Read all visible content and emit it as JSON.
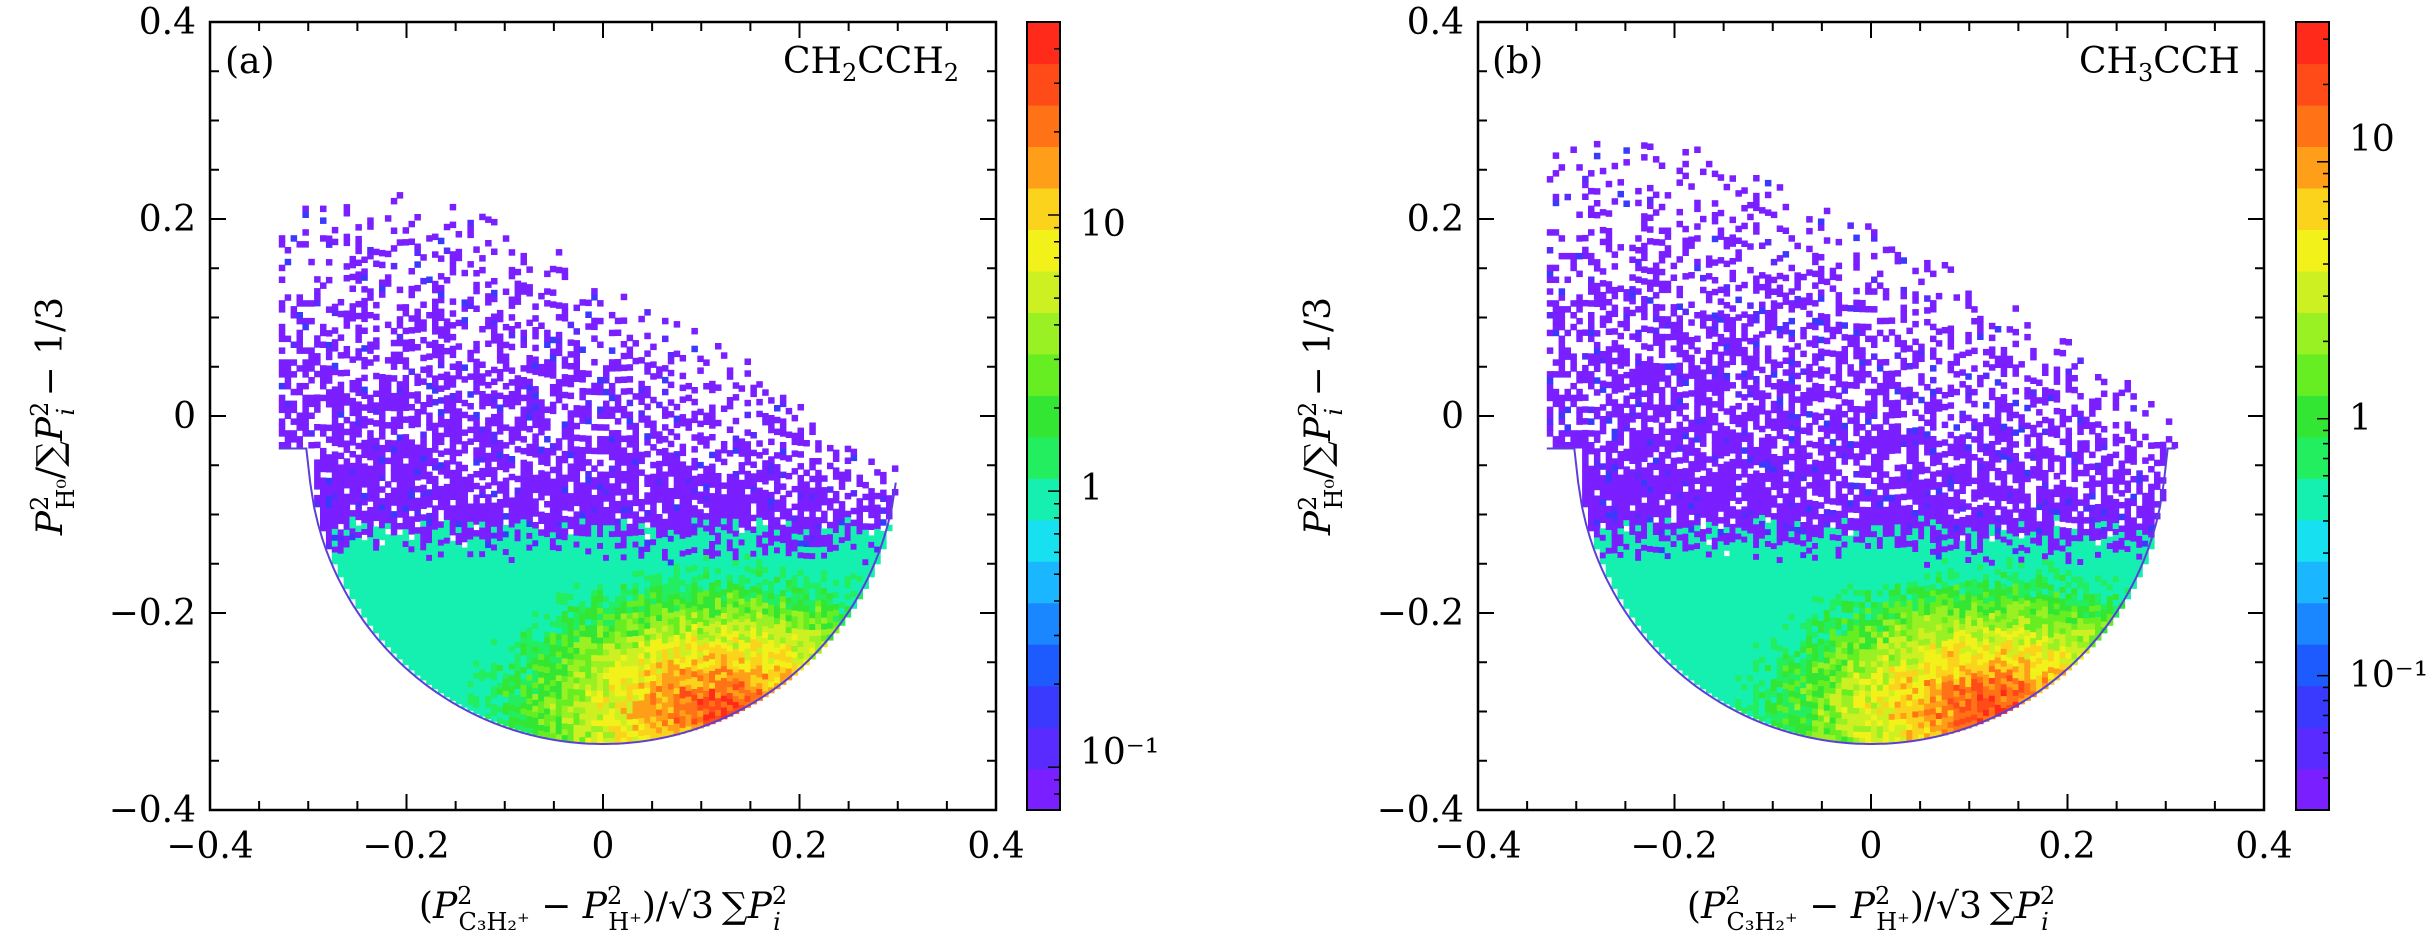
{
  "chart_data": [
    {
      "type": "heatmap",
      "panel_label": "(a)",
      "molecule": {
        "base": "CH",
        "sub1": "2",
        "mid": "CCH",
        "sub2": "2"
      },
      "xlabel": {
        "open": "(",
        "P": "P",
        "sq": "2",
        "s1": "C₃H₂⁺",
        "minus": " − ",
        "s2": "H⁺",
        "close": ")",
        "div": "/",
        "sqrt3": "√3",
        "sum": "∑",
        "Pi": "P",
        "sqi": "2",
        "i": "i"
      },
      "ylabel": {
        "P": "P",
        "sq": "2",
        "s1": "H⁰",
        "div": "/",
        "sum": "∑",
        "Pi": "P",
        "sqi": "2",
        "i": "i",
        "tail": " − 1/3"
      },
      "xlim": [
        -0.4,
        0.4
      ],
      "ylim": [
        -0.4,
        0.4
      ],
      "xticks": [
        "−0.4",
        "−0.2",
        "0",
        "0.2",
        "0.4"
      ],
      "yticks": [
        "−0.4",
        "−0.2",
        "0",
        "0.2",
        "0.4"
      ],
      "colorbar": {
        "scale": "log",
        "range": [
          0.07,
          50
        ],
        "labels": [
          "10",
          "1",
          "10⁻¹"
        ],
        "label_values": [
          10,
          1,
          0.1
        ]
      },
      "boundary_arc": {
        "center": [
          0,
          -0.033
        ],
        "radius": 0.3,
        "x_range": [
          -0.33,
          0.3
        ]
      },
      "region": {
        "sparse_top_y": 0.23,
        "dense_edge_y": -0.13,
        "peak": {
          "x": 0.12,
          "y": -0.3
        }
      }
    },
    {
      "type": "heatmap",
      "panel_label": "(b)",
      "molecule": {
        "base": "CH",
        "sub1": "3",
        "mid": "CCH",
        "sub2": ""
      },
      "xlabel": {
        "open": "(",
        "P": "P",
        "sq": "2",
        "s1": "C₃H₂⁺",
        "minus": " − ",
        "s2": "H⁺",
        "close": ")",
        "div": "/",
        "sqrt3": "√3",
        "sum": "∑",
        "Pi": "P",
        "sqi": "2",
        "i": "i"
      },
      "ylabel": {
        "P": "P",
        "sq": "2",
        "s1": "H⁰",
        "div": "/",
        "sum": "∑",
        "Pi": "P",
        "sqi": "2",
        "i": "i",
        "tail": " − 1/3"
      },
      "xlim": [
        -0.4,
        0.4
      ],
      "ylim": [
        -0.4,
        0.4
      ],
      "xticks": [
        "−0.4",
        "−0.2",
        "0",
        "0.2",
        "0.4"
      ],
      "yticks": [
        "−0.4",
        "−0.2",
        "0",
        "0.2",
        "0.4"
      ],
      "colorbar": {
        "scale": "log",
        "range": [
          0.03,
          35
        ],
        "labels": [
          "10",
          "1",
          "10⁻¹"
        ],
        "label_values": [
          10,
          1,
          0.1
        ]
      },
      "boundary_arc": {
        "center": [
          0,
          -0.033
        ],
        "radius": 0.3,
        "x_range": [
          -0.33,
          0.31
        ]
      },
      "region": {
        "sparse_top_y": 0.28,
        "dense_edge_y": -0.13,
        "peak": {
          "x": 0.12,
          "y": -0.3
        }
      }
    }
  ],
  "colors": {
    "purple": "#7a1fff",
    "ramp": [
      "#7a1fff",
      "#5a2bff",
      "#3a3aff",
      "#1e5bff",
      "#1a86ff",
      "#1ab6ff",
      "#17e0f0",
      "#15f0b0",
      "#22ee60",
      "#33e633",
      "#66ee22",
      "#99f022",
      "#ccf022",
      "#f2f21a",
      "#fbd21c",
      "#ff9e18",
      "#ff7316",
      "#ff4b18",
      "#ff2a1a"
    ]
  }
}
